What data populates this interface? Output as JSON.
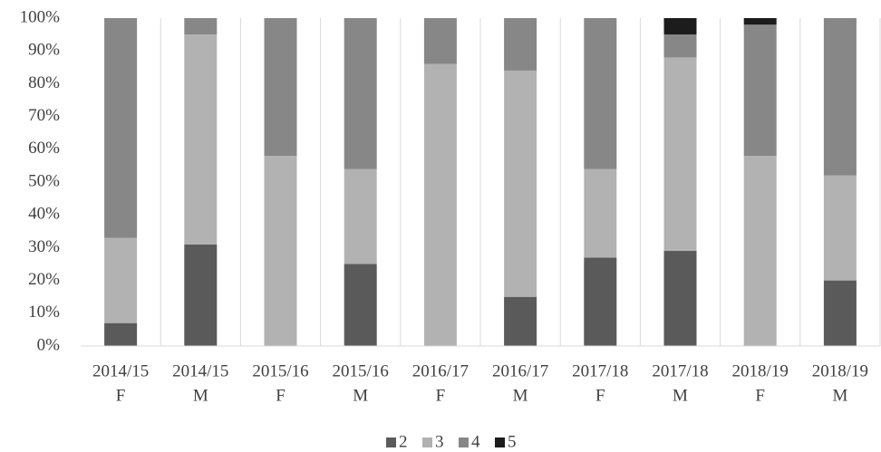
{
  "chart_data": {
    "type": "stacked_bar_100",
    "categories": [
      [
        "2014/15",
        "F"
      ],
      [
        "2014/15",
        "M"
      ],
      [
        "2015/16",
        "F"
      ],
      [
        "2015/16",
        "M"
      ],
      [
        "2016/17",
        "F"
      ],
      [
        "2016/17",
        "M"
      ],
      [
        "2017/18",
        "F"
      ],
      [
        "2017/18",
        "M"
      ],
      [
        "2018/19",
        "F"
      ],
      [
        "2018/19",
        "M"
      ]
    ],
    "series": [
      {
        "name": "2",
        "color": "#5a5a5a",
        "values": [
          7,
          31,
          0,
          25,
          0,
          15,
          27,
          29,
          0,
          20
        ]
      },
      {
        "name": "3",
        "color": "#b2b2b2",
        "values": [
          26,
          64,
          58,
          29,
          86,
          69,
          27,
          59,
          58,
          32
        ]
      },
      {
        "name": "4",
        "color": "#878787",
        "values": [
          67,
          5,
          42,
          46,
          14,
          16,
          46,
          7,
          40,
          48
        ]
      },
      {
        "name": "5",
        "color": "#1c1c1c",
        "values": [
          0,
          0,
          0,
          0,
          0,
          0,
          0,
          5,
          2,
          0
        ]
      }
    ],
    "ylim": [
      0,
      100
    ],
    "yticks": [
      {
        "value": 0,
        "label": "0%"
      },
      {
        "value": 10,
        "label": "10%"
      },
      {
        "value": 20,
        "label": "20%"
      },
      {
        "value": 30,
        "label": "30%"
      },
      {
        "value": 40,
        "label": "40%"
      },
      {
        "value": 50,
        "label": "50%"
      },
      {
        "value": 60,
        "label": "60%"
      },
      {
        "value": 70,
        "label": "70%"
      },
      {
        "value": 80,
        "label": "80%"
      },
      {
        "value": 90,
        "label": "90%"
      },
      {
        "value": 100,
        "label": "100%"
      }
    ],
    "legend": "bottom"
  }
}
